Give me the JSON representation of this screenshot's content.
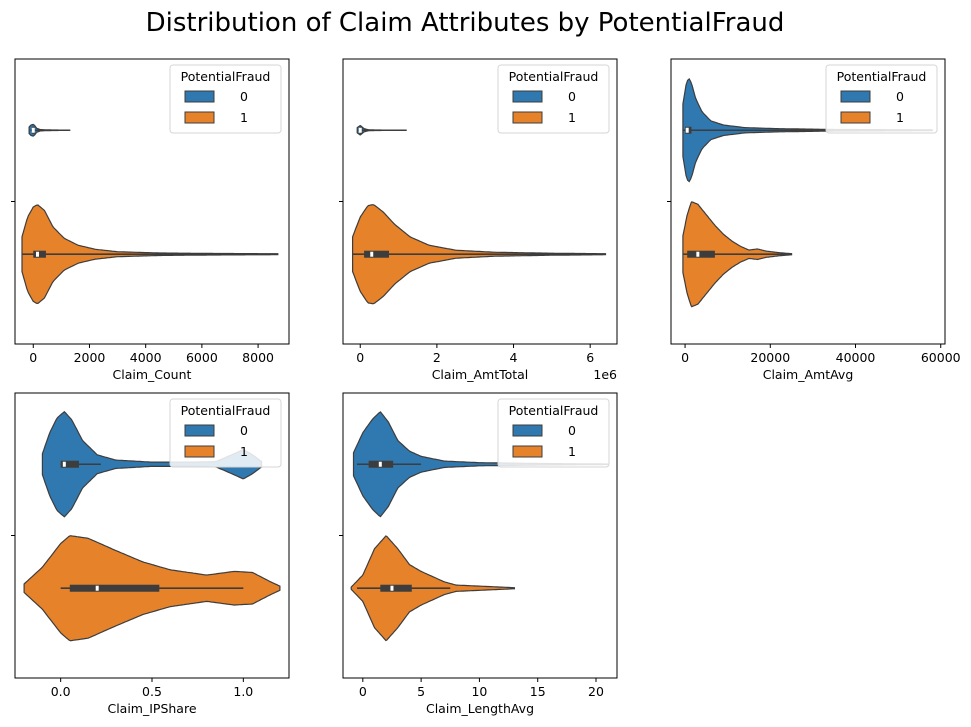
{
  "figure": {
    "title": "Distribution of Claim Attributes by PotentialFraud"
  },
  "legend": {
    "title": "PotentialFraud",
    "entries": [
      {
        "label": "0",
        "color": "#2f78b0"
      },
      {
        "label": "1",
        "color": "#e6822a"
      }
    ]
  },
  "chart_data": [
    {
      "type": "violin",
      "xlabel": "Claim_Count",
      "offset_text": "",
      "xlim": [
        -650,
        9100
      ],
      "xticks": [
        0,
        2000,
        4000,
        6000,
        8000
      ],
      "xtick_labels": [
        "0",
        "2000",
        "4000",
        "6000",
        "8000"
      ],
      "legend_position": "upper right",
      "series": [
        {
          "name": "0",
          "min": -100,
          "q1": -50,
          "median": 0,
          "q3": 30,
          "max": 1300,
          "kde": [
            [
              -150,
              0.55
            ],
            [
              -80,
              0.9
            ],
            [
              0,
              1.0
            ],
            [
              50,
              0.8
            ],
            [
              120,
              0.35
            ],
            [
              250,
              0.12
            ],
            [
              500,
              0.06
            ],
            [
              800,
              0.04
            ],
            [
              1100,
              0.02
            ],
            [
              1300,
              0.01
            ]
          ],
          "width_scale": 0.1
        },
        {
          "name": "1",
          "min": -400,
          "q1": 0,
          "median": 150,
          "q3": 450,
          "max": 8700,
          "kde": [
            [
              -400,
              0.35
            ],
            [
              -200,
              0.75
            ],
            [
              0,
              0.95
            ],
            [
              150,
              1.0
            ],
            [
              400,
              0.88
            ],
            [
              700,
              0.55
            ],
            [
              1100,
              0.32
            ],
            [
              1600,
              0.18
            ],
            [
              2200,
              0.1
            ],
            [
              3000,
              0.05
            ],
            [
              4500,
              0.025
            ],
            [
              6500,
              0.015
            ],
            [
              8700,
              0.01
            ]
          ],
          "width_scale": 0.85
        }
      ]
    },
    {
      "type": "violin",
      "xlabel": "Claim_AmtTotal",
      "offset_text": "1e6",
      "xlim": [
        -450000,
        6700000
      ],
      "xticks": [
        0,
        2000000,
        4000000,
        6000000
      ],
      "xtick_labels": [
        "0",
        "2",
        "4",
        "6"
      ],
      "legend_position": "upper right",
      "series": [
        {
          "name": "0",
          "min": -50000,
          "q1": -20000,
          "median": 0,
          "q3": 20000,
          "max": 1200000,
          "kde": [
            [
              -80000,
              0.55
            ],
            [
              -20000,
              0.9
            ],
            [
              0,
              1.0
            ],
            [
              40000,
              0.75
            ],
            [
              100000,
              0.35
            ],
            [
              200000,
              0.12
            ],
            [
              400000,
              0.05
            ],
            [
              800000,
              0.03
            ],
            [
              1200000,
              0.01
            ]
          ],
          "width_scale": 0.08
        },
        {
          "name": "1",
          "min": -200000,
          "q1": 100000,
          "median": 300000,
          "q3": 750000,
          "max": 6400000,
          "kde": [
            [
              -200000,
              0.35
            ],
            [
              0,
              0.75
            ],
            [
              200000,
              0.98
            ],
            [
              350000,
              1.0
            ],
            [
              600000,
              0.85
            ],
            [
              900000,
              0.6
            ],
            [
              1300000,
              0.35
            ],
            [
              1800000,
              0.18
            ],
            [
              2500000,
              0.08
            ],
            [
              3500000,
              0.04
            ],
            [
              5000000,
              0.02
            ],
            [
              6400000,
              0.01
            ]
          ],
          "width_scale": 0.85
        }
      ]
    },
    {
      "type": "violin",
      "xlabel": "Claim_AmtAvg",
      "offset_text": "",
      "xlim": [
        -3300,
        61000
      ],
      "xticks": [
        0,
        20000,
        40000,
        60000
      ],
      "xtick_labels": [
        "0",
        "20000",
        "40000",
        "60000"
      ],
      "legend_position": "upper right",
      "series": [
        {
          "name": "0",
          "min": -500,
          "q1": 0,
          "median": 500,
          "q3": 1500,
          "max": 58000,
          "kde": [
            [
              -500,
              0.5
            ],
            [
              200,
              0.85
            ],
            [
              800,
              1.0
            ],
            [
              1500,
              0.9
            ],
            [
              2500,
              0.6
            ],
            [
              4000,
              0.35
            ],
            [
              6000,
              0.18
            ],
            [
              9000,
              0.1
            ],
            [
              14000,
              0.05
            ],
            [
              22000,
              0.03
            ],
            [
              35000,
              0.015
            ],
            [
              58000,
              0.008
            ]
          ],
          "width_scale": 0.9
        },
        {
          "name": "1",
          "min": -500,
          "q1": 500,
          "median": 3000,
          "q3": 7000,
          "max": 25000,
          "kde": [
            [
              -500,
              0.35
            ],
            [
              500,
              0.75
            ],
            [
              1500,
              1.0
            ],
            [
              3000,
              0.95
            ],
            [
              5000,
              0.75
            ],
            [
              7000,
              0.55
            ],
            [
              9000,
              0.38
            ],
            [
              11000,
              0.25
            ],
            [
              13000,
              0.15
            ],
            [
              15000,
              0.08
            ],
            [
              17000,
              0.1
            ],
            [
              19000,
              0.06
            ],
            [
              22000,
              0.03
            ],
            [
              25000,
              0.01
            ]
          ],
          "width_scale": 0.9
        }
      ]
    },
    {
      "type": "violin",
      "xlabel": "Claim_IPShare",
      "offset_text": "",
      "xlim": [
        -0.25,
        1.25
      ],
      "xticks": [
        0.0,
        0.5,
        1.0
      ],
      "xtick_labels": [
        "0.0",
        "0.5",
        "1.0"
      ],
      "legend_position": "upper right",
      "series": [
        {
          "name": "0",
          "min": 0.0,
          "q1": 0.0,
          "median": 0.02,
          "q3": 0.1,
          "max": 0.22,
          "kde": [
            [
              -0.1,
              0.2
            ],
            [
              -0.06,
              0.6
            ],
            [
              -0.02,
              0.88
            ],
            [
              0.02,
              1.0
            ],
            [
              0.06,
              0.85
            ],
            [
              0.12,
              0.45
            ],
            [
              0.2,
              0.18
            ],
            [
              0.3,
              0.08
            ],
            [
              0.5,
              0.04
            ],
            [
              0.7,
              0.04
            ],
            [
              0.85,
              0.05
            ],
            [
              0.95,
              0.2
            ],
            [
              1.0,
              0.28
            ],
            [
              1.05,
              0.18
            ],
            [
              1.1,
              0.05
            ]
          ],
          "width_scale": 0.9
        },
        {
          "name": "1",
          "min": 0.0,
          "q1": 0.05,
          "median": 0.2,
          "q3": 0.54,
          "max": 1.0,
          "kde": [
            [
              -0.2,
              0.08
            ],
            [
              -0.1,
              0.4
            ],
            [
              0.0,
              0.85
            ],
            [
              0.05,
              1.0
            ],
            [
              0.15,
              0.95
            ],
            [
              0.3,
              0.72
            ],
            [
              0.45,
              0.5
            ],
            [
              0.6,
              0.35
            ],
            [
              0.8,
              0.25
            ],
            [
              0.95,
              0.32
            ],
            [
              1.05,
              0.3
            ],
            [
              1.15,
              0.12
            ],
            [
              1.2,
              0.04
            ]
          ],
          "width_scale": 0.9
        }
      ]
    },
    {
      "type": "violin",
      "xlabel": "Claim_LengthAvg",
      "offset_text": "",
      "xlim": [
        -1.7,
        21.8
      ],
      "xticks": [
        0,
        5,
        10,
        15,
        20
      ],
      "xtick_labels": [
        "0",
        "5",
        "10",
        "15",
        "20"
      ],
      "legend_position": "upper right",
      "series": [
        {
          "name": "0",
          "min": -0.5,
          "q1": 0.5,
          "median": 1.5,
          "q3": 2.6,
          "max": 5.0,
          "kde": [
            [
              -0.8,
              0.22
            ],
            [
              0,
              0.6
            ],
            [
              0.8,
              0.85
            ],
            [
              1.5,
              1.0
            ],
            [
              2.2,
              0.8
            ],
            [
              3.0,
              0.45
            ],
            [
              4.0,
              0.25
            ],
            [
              5.0,
              0.15
            ],
            [
              7.0,
              0.06
            ],
            [
              10.0,
              0.03
            ],
            [
              15.0,
              0.015
            ],
            [
              21.0,
              0.005
            ]
          ],
          "width_scale": 0.9
        },
        {
          "name": "1",
          "min": -0.5,
          "q1": 1.5,
          "median": 2.5,
          "q3": 4.2,
          "max": 7.5,
          "kde": [
            [
              -1.0,
              0.02
            ],
            [
              0,
              0.25
            ],
            [
              1.0,
              0.75
            ],
            [
              2.0,
              1.0
            ],
            [
              3.0,
              0.75
            ],
            [
              4.0,
              0.45
            ],
            [
              5.0,
              0.32
            ],
            [
              6.0,
              0.22
            ],
            [
              7.0,
              0.12
            ],
            [
              8.0,
              0.06
            ],
            [
              10.0,
              0.04
            ],
            [
              11.0,
              0.03
            ],
            [
              13.0,
              0.01
            ]
          ],
          "width_scale": 0.9
        }
      ]
    }
  ]
}
